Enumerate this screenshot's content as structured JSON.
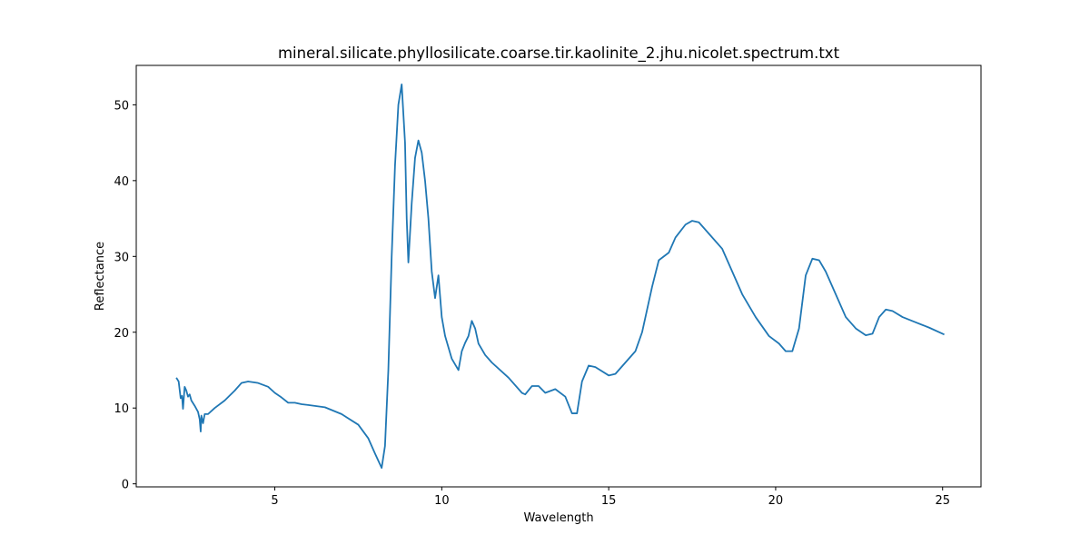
{
  "chart_data": {
    "type": "line",
    "title": "mineral.silicate.phyllosilicate.coarse.tir.kaolinite_2.jhu.nicolet.spectrum.txt",
    "xlabel": "Wavelength",
    "ylabel": "Reflectance",
    "color": "#1f77b4",
    "grid": false,
    "xlim": [
      0.85,
      26.15
    ],
    "ylim": [
      -0.4,
      55.2
    ],
    "xticks": [
      5,
      10,
      15,
      20,
      25
    ],
    "yticks": [
      0,
      10,
      20,
      30,
      40,
      50
    ],
    "x": [
      2.05,
      2.12,
      2.18,
      2.22,
      2.25,
      2.3,
      2.35,
      2.4,
      2.45,
      2.5,
      2.6,
      2.7,
      2.75,
      2.78,
      2.8,
      2.85,
      2.9,
      3.0,
      3.2,
      3.5,
      3.8,
      4.0,
      4.2,
      4.5,
      4.8,
      5.0,
      5.2,
      5.4,
      5.6,
      5.8,
      6.0,
      6.5,
      7.0,
      7.5,
      7.8,
      8.0,
      8.2,
      8.3,
      8.4,
      8.5,
      8.6,
      8.7,
      8.8,
      8.9,
      8.95,
      9.0,
      9.1,
      9.2,
      9.3,
      9.4,
      9.5,
      9.6,
      9.7,
      9.8,
      9.9,
      10.0,
      10.1,
      10.3,
      10.5,
      10.6,
      10.7,
      10.8,
      10.9,
      11.0,
      11.1,
      11.3,
      11.5,
      12.0,
      12.4,
      12.5,
      12.7,
      12.9,
      13.1,
      13.4,
      13.7,
      13.9,
      14.05,
      14.2,
      14.4,
      14.6,
      15.0,
      15.2,
      15.5,
      15.8,
      16.0,
      16.3,
      16.5,
      16.8,
      17.0,
      17.3,
      17.5,
      17.7,
      18.0,
      18.4,
      18.7,
      19.0,
      19.4,
      19.8,
      20.1,
      20.3,
      20.5,
      20.7,
      20.9,
      21.1,
      21.3,
      21.5,
      21.8,
      22.1,
      22.4,
      22.7,
      22.9,
      23.1,
      23.3,
      23.5,
      23.8,
      24.2,
      24.6,
      25.0,
      25.05
    ],
    "values": [
      14.0,
      13.5,
      11.3,
      11.6,
      9.9,
      12.8,
      12.3,
      11.5,
      11.8,
      11.0,
      10.3,
      9.5,
      8.5,
      6.9,
      9.0,
      8.0,
      9.2,
      9.2,
      10.0,
      11.0,
      12.3,
      13.3,
      13.5,
      13.3,
      12.8,
      12.0,
      11.4,
      10.7,
      10.7,
      10.5,
      10.4,
      10.1,
      9.2,
      7.8,
      6.0,
      4.0,
      2.1,
      5,
      15,
      30,
      42,
      50,
      52.7,
      45,
      35,
      29.2,
      37,
      43,
      45.3,
      43.7,
      40,
      35,
      28,
      24.5,
      27.5,
      22.0,
      19.5,
      16.5,
      15.0,
      17.5,
      18.6,
      19.5,
      21.5,
      20.5,
      18.5,
      17.0,
      16.0,
      14.0,
      12.0,
      11.8,
      12.9,
      12.9,
      12.0,
      12.5,
      11.5,
      9.3,
      9.3,
      13.5,
      15.6,
      15.4,
      14.3,
      14.5,
      16.0,
      17.5,
      20,
      26,
      29.5,
      30.5,
      32.5,
      34.2,
      34.7,
      34.5,
      33,
      31,
      28,
      25,
      22,
      19.5,
      18.5,
      17.5,
      17.5,
      20.5,
      27.5,
      29.7,
      29.5,
      28,
      25,
      22,
      20.5,
      19.6,
      19.8,
      22.0,
      23.0,
      22.8,
      22.0,
      21.3,
      20.6,
      19.8,
      19.7
    ]
  }
}
